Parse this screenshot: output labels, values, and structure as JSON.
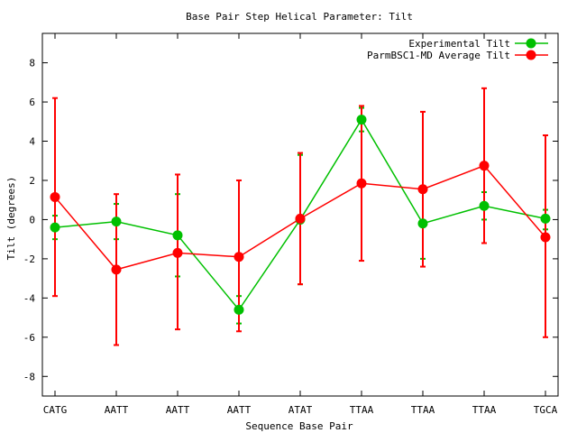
{
  "chart_data": {
    "type": "line",
    "title": "Base Pair Step Helical Parameter: Tilt",
    "xlabel": "Sequence Base Pair",
    "ylabel": "Tilt (degrees)",
    "categories": [
      "CATG",
      "AATT",
      "AATT",
      "AATT",
      "ATAT",
      "TTAA",
      "TTAA",
      "TTAA",
      "TGCA"
    ],
    "ylim": [
      -9,
      9.5
    ],
    "yticks": [
      -8,
      -6,
      -4,
      -2,
      0,
      2,
      4,
      6,
      8
    ],
    "legend_position": "top-right",
    "grid": false,
    "series": [
      {
        "name": "Experimental Tilt",
        "color": "#00c000",
        "values": [
          -0.4,
          -0.1,
          -0.8,
          -4.6,
          0.0,
          5.1,
          -0.2,
          0.7,
          0.05
        ],
        "error_low": [
          -1.0,
          -1.0,
          -2.9,
          -5.3,
          -3.3,
          4.5,
          -2.0,
          0.0,
          -0.5
        ],
        "error_high": [
          0.2,
          0.8,
          1.3,
          -3.9,
          3.3,
          5.7,
          1.7,
          1.4,
          0.5
        ]
      },
      {
        "name": "ParmBSC1-MD Average Tilt",
        "color": "#ff0000",
        "values": [
          1.15,
          -2.55,
          -1.7,
          -1.9,
          0.05,
          1.85,
          1.55,
          2.75,
          -0.9
        ],
        "error_low": [
          -3.9,
          -6.4,
          -5.6,
          -5.7,
          -3.3,
          -2.1,
          -2.4,
          -1.2,
          -6.0
        ],
        "error_high": [
          6.2,
          1.3,
          2.3,
          2.0,
          3.4,
          5.8,
          5.5,
          6.7,
          4.3
        ]
      }
    ]
  }
}
